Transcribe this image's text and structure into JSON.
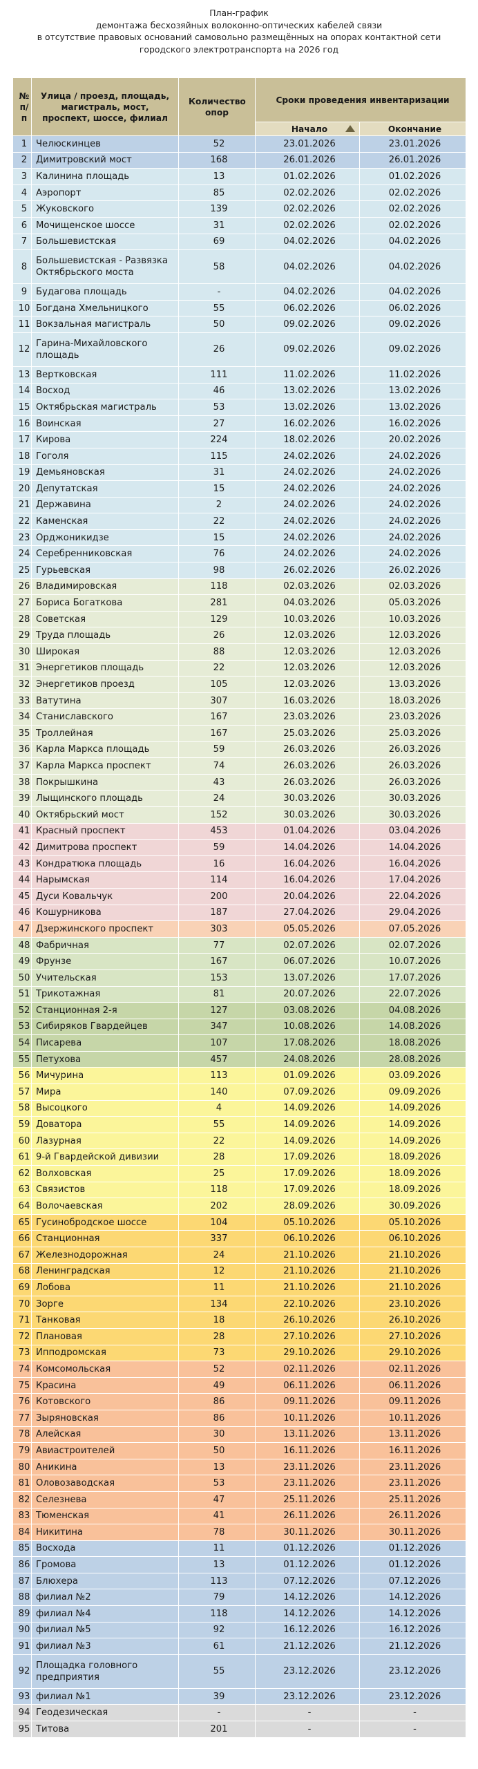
{
  "title_lines": [
    "План-график",
    "демонтажа бесхозяйных волоконно-оптических кабелей связи",
    "в отсутствие правовых оснований самовольно размещённых на опорах контактной сети",
    "городского электротранспорта на 2026 год"
  ],
  "table": {
    "headers": {
      "num": "№\nп/п",
      "street": "Улица / проезд, площадь, магистраль, мост, проспект, шоссе, филиал",
      "qty": "Количество опор",
      "period": "Сроки проведения инвентаризации",
      "start": "Начало",
      "end": "Окончание"
    },
    "rows": [
      {
        "n": "1",
        "street": "Челюскинцев",
        "qty": "52",
        "start": "23.01.2026",
        "end": "23.01.2026",
        "color": "blue"
      },
      {
        "n": "2",
        "street": "Димитровский мост",
        "qty": "168",
        "start": "26.01.2026",
        "end": "26.01.2026",
        "color": "blue"
      },
      {
        "n": "3",
        "street": "Калинина площадь",
        "qty": "13",
        "start": "01.02.2026",
        "end": "01.02.2026",
        "color": "lblue"
      },
      {
        "n": "4",
        "street": "Аэропорт",
        "qty": "85",
        "start": "02.02.2026",
        "end": "02.02.2026",
        "color": "lblue"
      },
      {
        "n": "5",
        "street": "Жуковского",
        "qty": "139",
        "start": "02.02.2026",
        "end": "02.02.2026",
        "color": "lblue"
      },
      {
        "n": "6",
        "street": "Мочищенское шоссе",
        "qty": "31",
        "start": "02.02.2026",
        "end": "02.02.2026",
        "color": "lblue"
      },
      {
        "n": "7",
        "street": "Большевистская",
        "qty": "69",
        "start": "04.02.2026",
        "end": "04.02.2026",
        "color": "lblue"
      },
      {
        "n": "8",
        "street": "Большевистская - Развязка Октябрьского моста",
        "qty": "58",
        "start": "04.02.2026",
        "end": "04.02.2026",
        "color": "lblue",
        "tall": true
      },
      {
        "n": "9",
        "street": "Будагова площадь",
        "qty": "-",
        "start": "04.02.2026",
        "end": "04.02.2026",
        "color": "lblue"
      },
      {
        "n": "10",
        "street": "Богдана Хмельницкого",
        "qty": "55",
        "start": "06.02.2026",
        "end": "06.02.2026",
        "color": "lblue"
      },
      {
        "n": "11",
        "street": "Вокзальная магистраль",
        "qty": "50",
        "start": "09.02.2026",
        "end": "09.02.2026",
        "color": "lblue"
      },
      {
        "n": "12",
        "street": "Гарина-Михайловского площадь",
        "qty": "26",
        "start": "09.02.2026",
        "end": "09.02.2026",
        "color": "lblue",
        "tall": true
      },
      {
        "n": "13",
        "street": "Вертковская",
        "qty": "111",
        "start": "11.02.2026",
        "end": "11.02.2026",
        "color": "lblue"
      },
      {
        "n": "14",
        "street": "Восход",
        "qty": "46",
        "start": "13.02.2026",
        "end": "13.02.2026",
        "color": "lblue"
      },
      {
        "n": "15",
        "street": "Октябрьская магистраль",
        "qty": "53",
        "start": "13.02.2026",
        "end": "13.02.2026",
        "color": "lblue"
      },
      {
        "n": "16",
        "street": "Воинская",
        "qty": "27",
        "start": "16.02.2026",
        "end": "16.02.2026",
        "color": "lblue"
      },
      {
        "n": "17",
        "street": "Кирова",
        "qty": "224",
        "start": "18.02.2026",
        "end": "20.02.2026",
        "color": "lblue"
      },
      {
        "n": "18",
        "street": "Гоголя",
        "qty": "115",
        "start": "24.02.2026",
        "end": "24.02.2026",
        "color": "lblue"
      },
      {
        "n": "19",
        "street": "Демьяновская",
        "qty": "31",
        "start": "24.02.2026",
        "end": "24.02.2026",
        "color": "lblue"
      },
      {
        "n": "20",
        "street": "Депутатская",
        "qty": "15",
        "start": "24.02.2026",
        "end": "24.02.2026",
        "color": "lblue"
      },
      {
        "n": "21",
        "street": "Державина",
        "qty": "2",
        "start": "24.02.2026",
        "end": "24.02.2026",
        "color": "lblue"
      },
      {
        "n": "22",
        "street": "Каменская",
        "qty": "22",
        "start": "24.02.2026",
        "end": "24.02.2026",
        "color": "lblue"
      },
      {
        "n": "23",
        "street": "Орджоникидзе",
        "qty": "15",
        "start": "24.02.2026",
        "end": "24.02.2026",
        "color": "lblue"
      },
      {
        "n": "24",
        "street": "Серебренниковская",
        "qty": "76",
        "start": "24.02.2026",
        "end": "24.02.2026",
        "color": "lblue"
      },
      {
        "n": "25",
        "street": "Гурьевская",
        "qty": "98",
        "start": "26.02.2026",
        "end": "26.02.2026",
        "color": "lblue"
      },
      {
        "n": "26",
        "street": "Владимировская",
        "qty": "118",
        "start": "02.03.2026",
        "end": "02.03.2026",
        "color": "green"
      },
      {
        "n": "27",
        "street": "Бориса Богаткова",
        "qty": "281",
        "start": "04.03.2026",
        "end": "05.03.2026",
        "color": "green"
      },
      {
        "n": "28",
        "street": "Советская",
        "qty": "129",
        "start": "10.03.2026",
        "end": "10.03.2026",
        "color": "green"
      },
      {
        "n": "29",
        "street": "Труда площадь",
        "qty": "26",
        "start": "12.03.2026",
        "end": "12.03.2026",
        "color": "green"
      },
      {
        "n": "30",
        "street": "Широкая",
        "qty": "88",
        "start": "12.03.2026",
        "end": "12.03.2026",
        "color": "green"
      },
      {
        "n": "31",
        "street": "Энергетиков площадь",
        "qty": "22",
        "start": "12.03.2026",
        "end": "12.03.2026",
        "color": "green"
      },
      {
        "n": "32",
        "street": "Энергетиков проезд",
        "qty": "105",
        "start": "12.03.2026",
        "end": "13.03.2026",
        "color": "green"
      },
      {
        "n": "33",
        "street": "Ватутина",
        "qty": "307",
        "start": "16.03.2026",
        "end": "18.03.2026",
        "color": "green"
      },
      {
        "n": "34",
        "street": "Станиславского",
        "qty": "167",
        "start": "23.03.2026",
        "end": "23.03.2026",
        "color": "green"
      },
      {
        "n": "35",
        "street": "Троллейная",
        "qty": "167",
        "start": "25.03.2026",
        "end": "25.03.2026",
        "color": "green"
      },
      {
        "n": "36",
        "street": "Карла Маркса площадь",
        "qty": "59",
        "start": "26.03.2026",
        "end": "26.03.2026",
        "color": "green"
      },
      {
        "n": "37",
        "street": "Карла Маркса проспект",
        "qty": "74",
        "start": "26.03.2026",
        "end": "26.03.2026",
        "color": "green"
      },
      {
        "n": "38",
        "street": "Покрышкина",
        "qty": "43",
        "start": "26.03.2026",
        "end": "26.03.2026",
        "color": "green"
      },
      {
        "n": "39",
        "street": "Лыщинского площадь",
        "qty": "24",
        "start": "30.03.2026",
        "end": "30.03.2026",
        "color": "green"
      },
      {
        "n": "40",
        "street": "Октябрьский мост",
        "qty": "152",
        "start": "30.03.2026",
        "end": "30.03.2026",
        "color": "green"
      },
      {
        "n": "41",
        "street": "Красный проспект",
        "qty": "453",
        "start": "01.04.2026",
        "end": "03.04.2026",
        "color": "pink"
      },
      {
        "n": "42",
        "street": "Димитрова проспект",
        "qty": "59",
        "start": "14.04.2026",
        "end": "14.04.2026",
        "color": "pink"
      },
      {
        "n": "43",
        "street": "Кондратюка площадь",
        "qty": "16",
        "start": "16.04.2026",
        "end": "16.04.2026",
        "color": "pink"
      },
      {
        "n": "44",
        "street": "Нарымская",
        "qty": "114",
        "start": "16.04.2026",
        "end": "17.04.2026",
        "color": "pink"
      },
      {
        "n": "45",
        "street": "Дуси Ковальчук",
        "qty": "200",
        "start": "20.04.2026",
        "end": "22.04.2026",
        "color": "pink"
      },
      {
        "n": "46",
        "street": "Кошурникова",
        "qty": "187",
        "start": "27.04.2026",
        "end": "29.04.2026",
        "color": "pink"
      },
      {
        "n": "47",
        "street": "Дзержинского проспект",
        "qty": "303",
        "start": "05.05.2026",
        "end": "07.05.2026",
        "color": "peach"
      },
      {
        "n": "48",
        "street": "Фабричная",
        "qty": "77",
        "start": "02.07.2026",
        "end": "02.07.2026",
        "color": "lgreen"
      },
      {
        "n": "49",
        "street": "Фрунзе",
        "qty": "167",
        "start": "06.07.2026",
        "end": "10.07.2026",
        "color": "lgreen"
      },
      {
        "n": "50",
        "street": "Учительская",
        "qty": "153",
        "start": "13.07.2026",
        "end": "17.07.2026",
        "color": "lgreen"
      },
      {
        "n": "51",
        "street": "Трикотажная",
        "qty": "81",
        "start": "20.07.2026",
        "end": "22.07.2026",
        "color": "lgreen"
      },
      {
        "n": "52",
        "street": "Станционная 2-я",
        "qty": "127",
        "start": "03.08.2026",
        "end": "04.08.2026",
        "color": "olive"
      },
      {
        "n": "53",
        "street": "Сибиряков Гвардейцев",
        "qty": "347",
        "start": "10.08.2026",
        "end": "14.08.2026",
        "color": "olive"
      },
      {
        "n": "54",
        "street": "Писарева",
        "qty": "107",
        "start": "17.08.2026",
        "end": "18.08.2026",
        "color": "olive"
      },
      {
        "n": "55",
        "street": "Петухова",
        "qty": "457",
        "start": "24.08.2026",
        "end": "28.08.2026",
        "color": "olive"
      },
      {
        "n": "56",
        "street": "Мичурина",
        "qty": "113",
        "start": "01.09.2026",
        "end": "03.09.2026",
        "color": "yellow"
      },
      {
        "n": "57",
        "street": "Мира",
        "qty": "140",
        "start": "07.09.2026",
        "end": "09.09.2026",
        "color": "yellow"
      },
      {
        "n": "58",
        "street": "Высоцкого",
        "qty": "4",
        "start": "14.09.2026",
        "end": "14.09.2026",
        "color": "yellow"
      },
      {
        "n": "59",
        "street": "Доватора",
        "qty": "55",
        "start": "14.09.2026",
        "end": "14.09.2026",
        "color": "yellow"
      },
      {
        "n": "60",
        "street": "Лазурная",
        "qty": "22",
        "start": "14.09.2026",
        "end": "14.09.2026",
        "color": "yellow"
      },
      {
        "n": "61",
        "street": "9-й Гвардейской дивизии",
        "qty": "28",
        "start": "17.09.2026",
        "end": "18.09.2026",
        "color": "yellow"
      },
      {
        "n": "62",
        "street": "Волховская",
        "qty": "25",
        "start": "17.09.2026",
        "end": "18.09.2026",
        "color": "yellow"
      },
      {
        "n": "63",
        "street": "Связистов",
        "qty": "118",
        "start": "17.09.2026",
        "end": "18.09.2026",
        "color": "yellow"
      },
      {
        "n": "64",
        "street": "Волочаевская",
        "qty": "202",
        "start": "28.09.2026",
        "end": "30.09.2026",
        "color": "yellow"
      },
      {
        "n": "65",
        "street": "Гусинобродское шоссе",
        "qty": "104",
        "start": "05.10.2026",
        "end": "05.10.2026",
        "color": "gold"
      },
      {
        "n": "66",
        "street": "Станционная",
        "qty": "337",
        "start": "06.10.2026",
        "end": "06.10.2026",
        "color": "gold"
      },
      {
        "n": "67",
        "street": "Железнодорожная",
        "qty": "24",
        "start": "21.10.2026",
        "end": "21.10.2026",
        "color": "gold"
      },
      {
        "n": "68",
        "street": "Ленинградская",
        "qty": "12",
        "start": "21.10.2026",
        "end": "21.10.2026",
        "color": "gold"
      },
      {
        "n": "69",
        "street": "Лобова",
        "qty": "11",
        "start": "21.10.2026",
        "end": "21.10.2026",
        "color": "gold"
      },
      {
        "n": "70",
        "street": "Зорге",
        "qty": "134",
        "start": "22.10.2026",
        "end": "23.10.2026",
        "color": "gold"
      },
      {
        "n": "71",
        "street": "Танковая",
        "qty": "18",
        "start": "26.10.2026",
        "end": "26.10.2026",
        "color": "gold"
      },
      {
        "n": "72",
        "street": "Плановая",
        "qty": "28",
        "start": "27.10.2026",
        "end": "27.10.2026",
        "color": "gold"
      },
      {
        "n": "73",
        "street": "Ипподромская",
        "qty": "73",
        "start": "29.10.2026",
        "end": "29.10.2026",
        "color": "gold"
      },
      {
        "n": "74",
        "street": "Комсомольская",
        "qty": "52",
        "start": "02.11.2026",
        "end": "02.11.2026",
        "color": "orange"
      },
      {
        "n": "75",
        "street": "Красина",
        "qty": "49",
        "start": "06.11.2026",
        "end": "06.11.2026",
        "color": "orange"
      },
      {
        "n": "76",
        "street": "Котовского",
        "qty": "86",
        "start": "09.11.2026",
        "end": "09.11.2026",
        "color": "orange"
      },
      {
        "n": "77",
        "street": "Зыряновская",
        "qty": "86",
        "start": "10.11.2026",
        "end": "10.11.2026",
        "color": "orange"
      },
      {
        "n": "78",
        "street": "Алейская",
        "qty": "30",
        "start": "13.11.2026",
        "end": "13.11.2026",
        "color": "orange"
      },
      {
        "n": "79",
        "street": "Авиастроителей",
        "qty": "50",
        "start": "16.11.2026",
        "end": "16.11.2026",
        "color": "orange"
      },
      {
        "n": "80",
        "street": "Аникина",
        "qty": "13",
        "start": "23.11.2026",
        "end": "23.11.2026",
        "color": "orange"
      },
      {
        "n": "81",
        "street": "Оловозаводская",
        "qty": "53",
        "start": "23.11.2026",
        "end": "23.11.2026",
        "color": "orange"
      },
      {
        "n": "82",
        "street": "Селезнева",
        "qty": "47",
        "start": "25.11.2026",
        "end": "25.11.2026",
        "color": "orange"
      },
      {
        "n": "83",
        "street": "Тюменская",
        "qty": "41",
        "start": "26.11.2026",
        "end": "26.11.2026",
        "color": "orange"
      },
      {
        "n": "84",
        "street": "Никитина",
        "qty": "78",
        "start": "30.11.2026",
        "end": "30.11.2026",
        "color": "orange"
      },
      {
        "n": "85",
        "street": "Восхода",
        "qty": "11",
        "start": "01.12.2026",
        "end": "01.12.2026",
        "color": "blue"
      },
      {
        "n": "86",
        "street": "Громова",
        "qty": "13",
        "start": "01.12.2026",
        "end": "01.12.2026",
        "color": "blue"
      },
      {
        "n": "87",
        "street": "Блюхера",
        "qty": "113",
        "start": "07.12.2026",
        "end": "07.12.2026",
        "color": "blue"
      },
      {
        "n": "88",
        "street": "филиал №2",
        "qty": "79",
        "start": "14.12.2026",
        "end": "14.12.2026",
        "color": "blue"
      },
      {
        "n": "89",
        "street": "филиал №4",
        "qty": "118",
        "start": "14.12.2026",
        "end": "14.12.2026",
        "color": "blue"
      },
      {
        "n": "90",
        "street": "филиал №5",
        "qty": "92",
        "start": "16.12.2026",
        "end": "16.12.2026",
        "color": "blue"
      },
      {
        "n": "91",
        "street": "филиал №3",
        "qty": "61",
        "start": "21.12.2026",
        "end": "21.12.2026",
        "color": "blue"
      },
      {
        "n": "92",
        "street": "Площадка головного предприятия",
        "qty": "55",
        "start": "23.12.2026",
        "end": "23.12.2026",
        "color": "blue",
        "tall": true
      },
      {
        "n": "93",
        "street": "филиал №1",
        "qty": "39",
        "start": "23.12.2026",
        "end": "23.12.2026",
        "color": "blue"
      },
      {
        "n": "94",
        "street": "Геодезическая",
        "qty": "-",
        "start": "-",
        "end": "-",
        "color": "grey"
      },
      {
        "n": "95",
        "street": "Титова",
        "qty": "201",
        "start": "-",
        "end": "-",
        "color": "grey"
      }
    ]
  },
  "colors": {
    "header": "#c9bf98",
    "blue": "#bdd1e6",
    "lblue": "#d6e8ef",
    "green": "#e6ecd6",
    "pink": "#f0d6d6",
    "peach": "#f9d2b6",
    "lgreen": "#d8e5c4",
    "olive": "#c6d6a8",
    "yellow": "#fbf59a",
    "gold": "#fcd873",
    "orange": "#f9c19a",
    "grey": "#dadada"
  },
  "icons": {
    "sort_indicator": "sort-up-triangle-icon"
  }
}
